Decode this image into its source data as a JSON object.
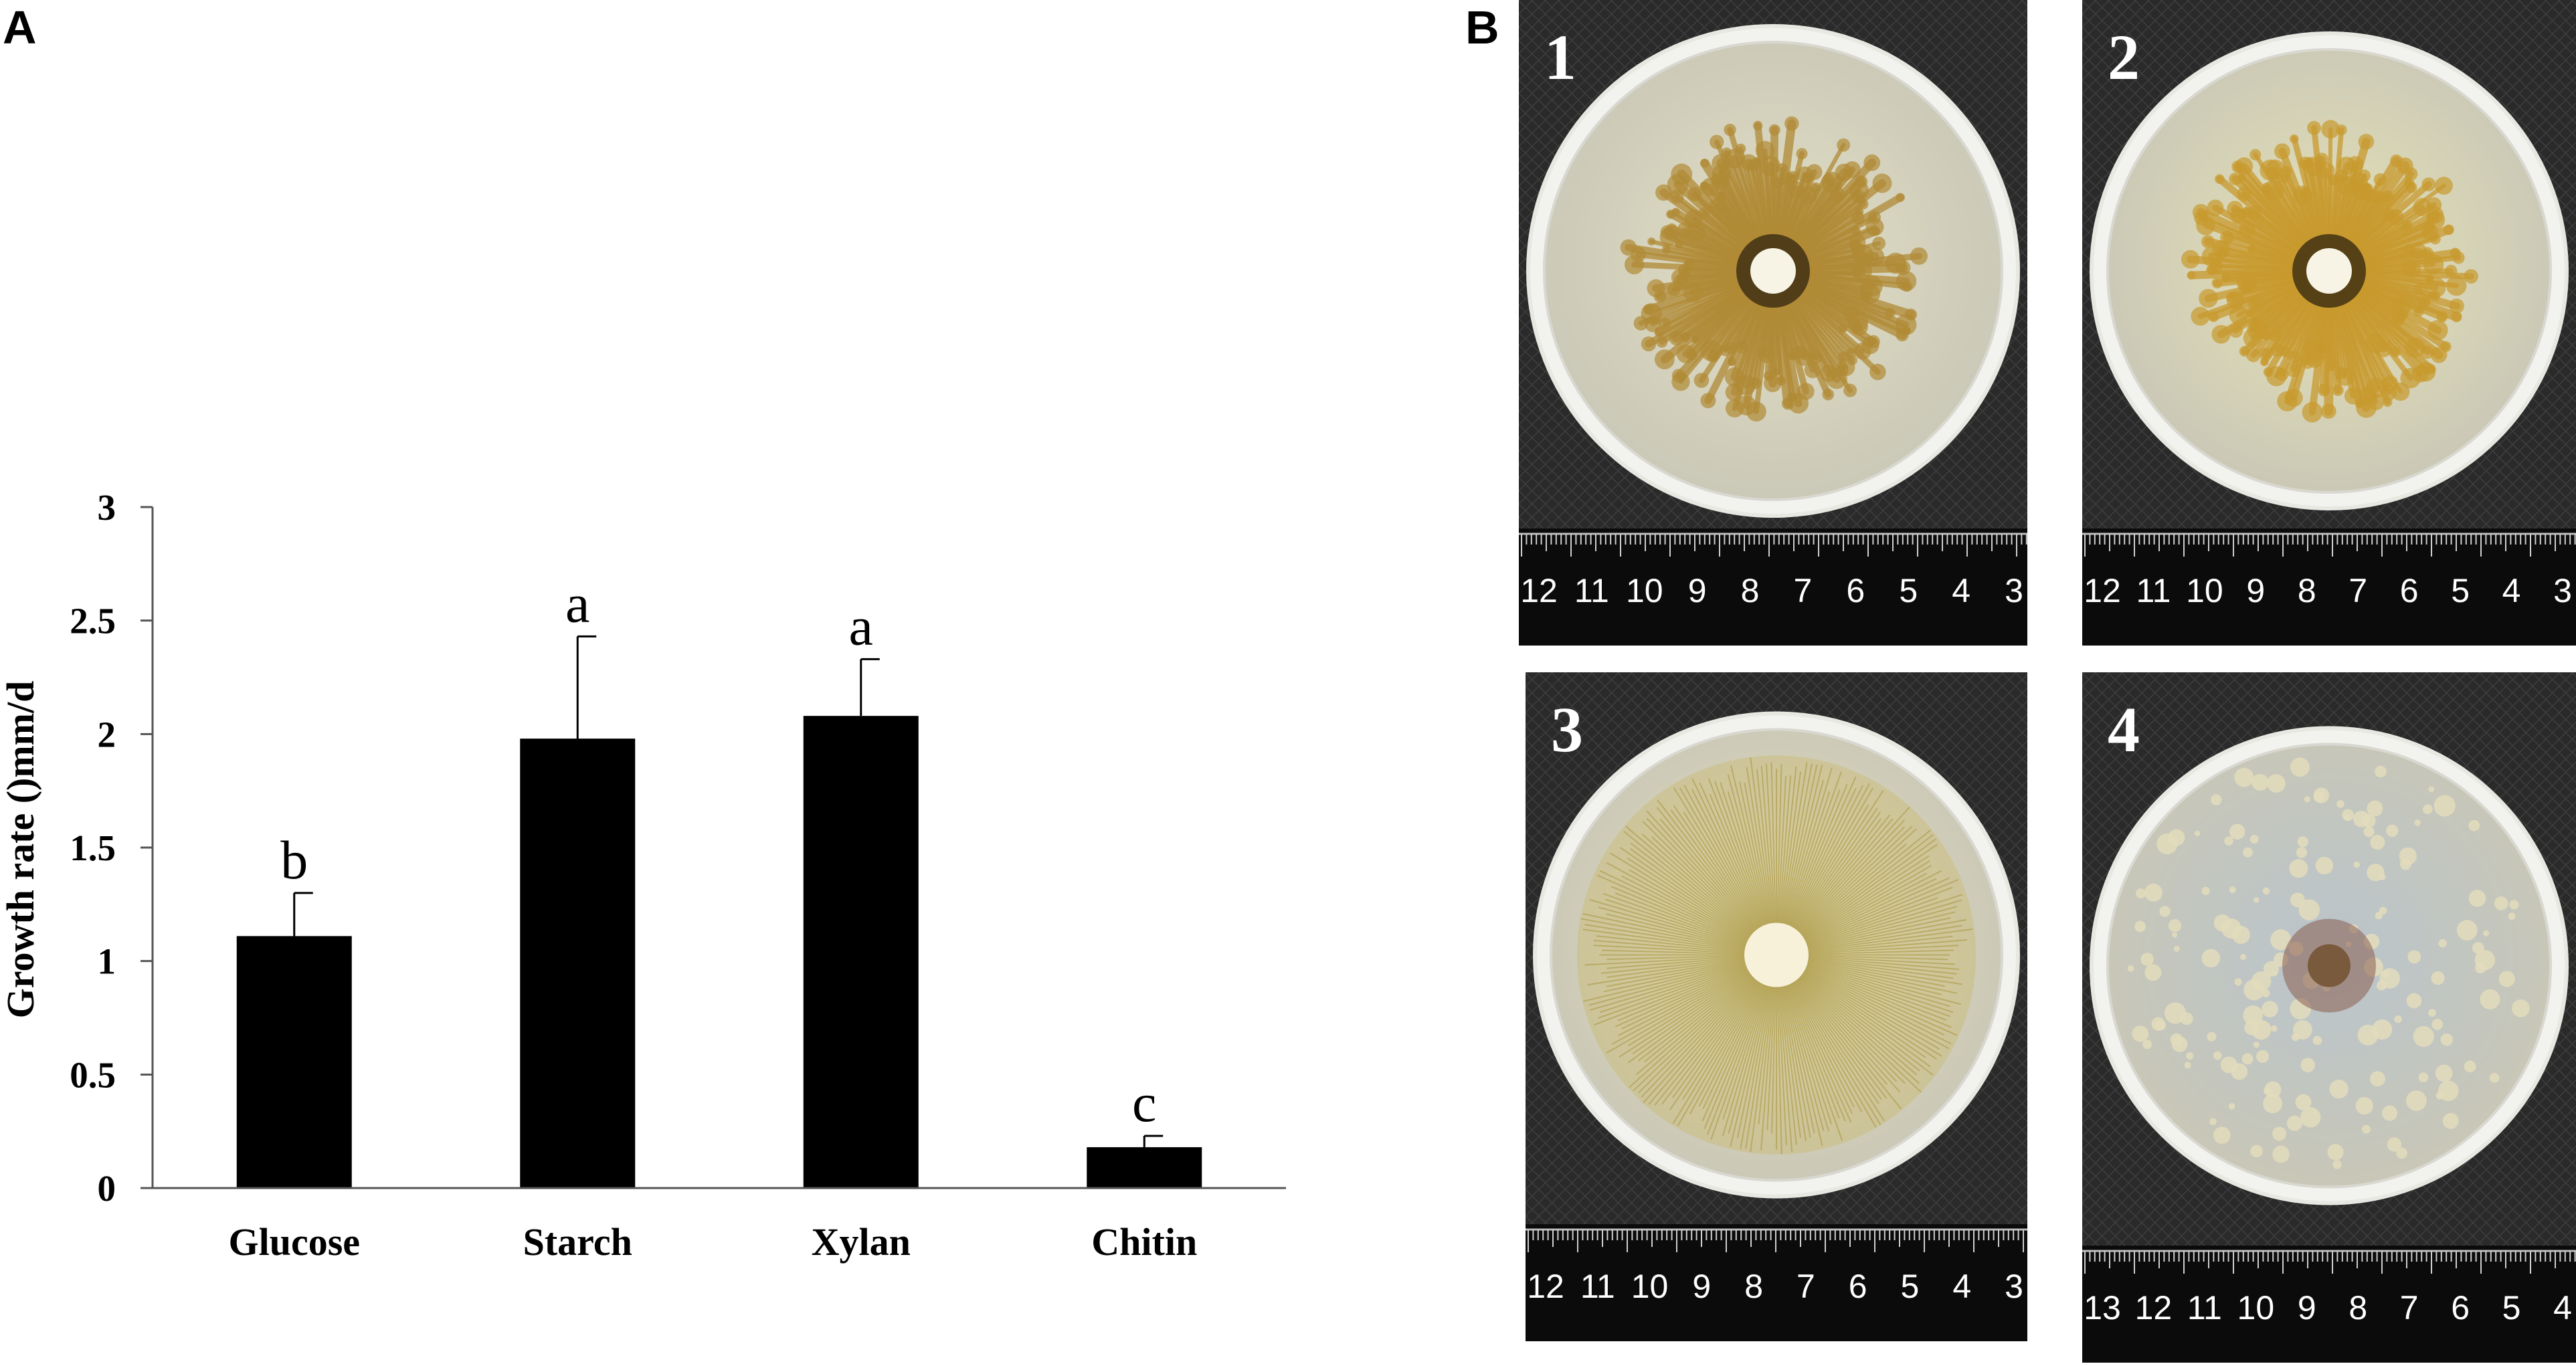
{
  "panels": {
    "a_label": "A",
    "b_label": "B"
  },
  "chart_data": {
    "type": "bar",
    "title": "",
    "xlabel": "",
    "ylabel": "Growth rate ()mm/d",
    "ylim": [
      0,
      3
    ],
    "yticks": [
      "0",
      "0.5",
      "1",
      "1.5",
      "2",
      "2.5",
      "3"
    ],
    "categories": [
      "Glucose",
      "Starch",
      "Xylan",
      "Chitin"
    ],
    "values": [
      1.11,
      1.98,
      2.08,
      0.18
    ],
    "errors": [
      0.19,
      0.45,
      0.25,
      0.05
    ],
    "significance": [
      "b",
      "a",
      "a",
      "c"
    ],
    "bar_color": "#000000",
    "grid": false
  },
  "plates": [
    {
      "number": "1",
      "ruler": [
        "12",
        "11",
        "10",
        "9",
        "8",
        "7",
        "6",
        "5",
        "4",
        "3"
      ],
      "dish": "#e3e0c6",
      "colony": "#b08a35",
      "style": "branched"
    },
    {
      "number": "2",
      "ruler": [
        "12",
        "11",
        "10",
        "9",
        "8",
        "7",
        "6",
        "5",
        "4",
        "3"
      ],
      "dish": "#e6e2b6",
      "colony": "#c89a2e",
      "style": "branched"
    },
    {
      "number": "3",
      "ruler": [
        "12",
        "11",
        "10",
        "9",
        "8",
        "7",
        "6",
        "5",
        "4",
        "3"
      ],
      "dish": "#e4e1bf",
      "colony": "#c9b45e",
      "style": "radial"
    },
    {
      "number": "4",
      "ruler": [
        "13",
        "12",
        "11",
        "10",
        "9",
        "8",
        "7",
        "6",
        "5",
        "4"
      ],
      "dish": "#b9c4cc",
      "colony": "#8a5f50",
      "style": "speckled"
    }
  ]
}
